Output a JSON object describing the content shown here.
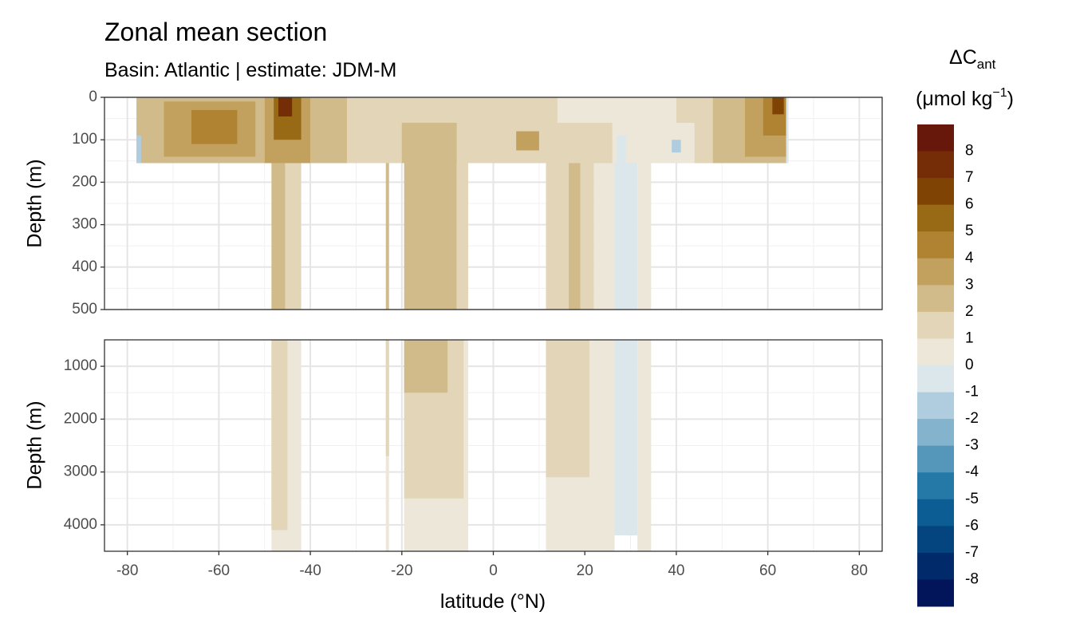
{
  "title": "Zonal mean section",
  "subtitle": "Basin: Atlantic | estimate: JDM-M",
  "legend": {
    "title_main": "ΔC",
    "title_sub": "ant",
    "unit_open": "(μmol kg",
    "unit_sup": "−1",
    "unit_close": ")",
    "bins": [
      {
        "label": "8",
        "color": "#67180b"
      },
      {
        "label": "7",
        "color": "#742d06"
      },
      {
        "label": "6",
        "color": "#7f4303"
      },
      {
        "label": "5",
        "color": "#986a16"
      },
      {
        "label": "4",
        "color": "#b08332"
      },
      {
        "label": "3",
        "color": "#c2a05e"
      },
      {
        "label": "2",
        "color": "#d2bb8a"
      },
      {
        "label": "1",
        "color": "#e2d5b8"
      },
      {
        "label": "0",
        "color": "#ede7da"
      },
      {
        "label": "-1",
        "color": "#dce7ec"
      },
      {
        "label": "-2",
        "color": "#b0cde0"
      },
      {
        "label": "-3",
        "color": "#84b4cd"
      },
      {
        "label": "-4",
        "color": "#5597bb"
      },
      {
        "label": "-5",
        "color": "#2579a6"
      },
      {
        "label": "-6",
        "color": "#0b5d94"
      },
      {
        "label": "-7",
        "color": "#044580"
      },
      {
        "label": "-8",
        "color": "#012a6b"
      },
      {
        "label": "",
        "color": "#02145a"
      }
    ]
  },
  "chart_data": {
    "type": "heatmap",
    "xlabel": "latitude (°N)",
    "ylabel": "Depth (m)",
    "xlim": [
      -85,
      85
    ],
    "x_ticks": [
      -80,
      -60,
      -40,
      -20,
      0,
      20,
      40,
      60,
      80
    ],
    "panels": [
      {
        "name": "upper",
        "ylim": [
          0,
          500
        ],
        "y_ticks": [
          0,
          100,
          200,
          300,
          400,
          500
        ],
        "bands": [
          {
            "lat": [
              -48.5,
              -45.5
            ],
            "depth": [
              150,
              500
            ],
            "value": 2.5
          },
          {
            "lat": [
              -45.5,
              -42
            ],
            "depth": [
              150,
              500
            ],
            "value": 1.5
          },
          {
            "lat": [
              -23.5,
              -22.8
            ],
            "depth": [
              150,
              500
            ],
            "value": 2.5
          },
          {
            "lat": [
              -19.5,
              -8
            ],
            "depth": [
              150,
              500
            ],
            "value": 2.5
          },
          {
            "lat": [
              -8,
              -5.5
            ],
            "depth": [
              150,
              500
            ],
            "value": 1.5
          },
          {
            "lat": [
              11.5,
              22
            ],
            "depth": [
              150,
              500
            ],
            "value": 1.5
          },
          {
            "lat": [
              16.5,
              19
            ],
            "depth": [
              150,
              500
            ],
            "value": 2.5
          },
          {
            "lat": [
              22,
              26.5
            ],
            "depth": [
              150,
              500
            ],
            "value": 0.5
          },
          {
            "lat": [
              26.5,
              31.5
            ],
            "depth": [
              150,
              500
            ],
            "value": -0.5
          },
          {
            "lat": [
              31.5,
              34.5
            ],
            "depth": [
              150,
              500
            ],
            "value": 0.5
          },
          {
            "lat": [
              -78,
              64.5
            ],
            "depth": [
              0,
              155
            ],
            "value": 1.5
          },
          {
            "lat": [
              -78,
              -50
            ],
            "depth": [
              0,
              155
            ],
            "value": 2.5
          },
          {
            "lat": [
              -72,
              -52
            ],
            "depth": [
              10,
              140
            ],
            "value": 3.5
          },
          {
            "lat": [
              -66,
              -56
            ],
            "depth": [
              30,
              110
            ],
            "value": 4.5
          },
          {
            "lat": [
              -50,
              -40
            ],
            "depth": [
              0,
              155
            ],
            "value": 3.5
          },
          {
            "lat": [
              -48,
              -42
            ],
            "depth": [
              0,
              100
            ],
            "value": 5.5
          },
          {
            "lat": [
              -47,
              -44
            ],
            "depth": [
              0,
              45
            ],
            "value": 7.5
          },
          {
            "lat": [
              -40,
              -32
            ],
            "depth": [
              0,
              155
            ],
            "value": 2.5
          },
          {
            "lat": [
              -20,
              -8
            ],
            "depth": [
              60,
              155
            ],
            "value": 2.5
          },
          {
            "lat": [
              0,
              16
            ],
            "depth": [
              0,
              155
            ],
            "value": 1.5
          },
          {
            "lat": [
              5,
              10
            ],
            "depth": [
              80,
              125
            ],
            "value": 3.5
          },
          {
            "lat": [
              14,
              40
            ],
            "depth": [
              0,
              60
            ],
            "value": 0.5
          },
          {
            "lat": [
              26,
              44
            ],
            "depth": [
              60,
              155
            ],
            "value": 0.5
          },
          {
            "lat": [
              27,
              29
            ],
            "depth": [
              90,
              155
            ],
            "value": -0.5
          },
          {
            "lat": [
              39,
              41
            ],
            "depth": [
              100,
              130
            ],
            "value": -1.5
          },
          {
            "lat": [
              44,
              64.5
            ],
            "depth": [
              0,
              155
            ],
            "value": 1.5
          },
          {
            "lat": [
              48,
              64.5
            ],
            "depth": [
              0,
              155
            ],
            "value": 2.5
          },
          {
            "lat": [
              55,
              64
            ],
            "depth": [
              0,
              140
            ],
            "value": 3.5
          },
          {
            "lat": [
              59,
              64
            ],
            "depth": [
              0,
              90
            ],
            "value": 4.5
          },
          {
            "lat": [
              61,
              63.5
            ],
            "depth": [
              0,
              40
            ],
            "value": 6.5
          },
          {
            "lat": [
              64,
              64.5
            ],
            "depth": [
              0,
              155
            ],
            "value": -0.5
          },
          {
            "lat": [
              -78,
              -77
            ],
            "depth": [
              90,
              155
            ],
            "value": -1.5
          }
        ]
      },
      {
        "name": "lower",
        "ylim": [
          500,
          4500
        ],
        "y_ticks": [
          1000,
          2000,
          3000,
          4000
        ],
        "bands": [
          {
            "lat": [
              -48.5,
              -42
            ],
            "depth": [
              500,
              4500
            ],
            "value": 0.5
          },
          {
            "lat": [
              -48.5,
              -45
            ],
            "depth": [
              500,
              4100
            ],
            "value": 1.5
          },
          {
            "lat": [
              -23.5,
              -22.8
            ],
            "depth": [
              500,
              4500
            ],
            "value": 0.5
          },
          {
            "lat": [
              -23.5,
              -22.8
            ],
            "depth": [
              500,
              2700
            ],
            "value": 1.5
          },
          {
            "lat": [
              -19.5,
              -5.5
            ],
            "depth": [
              500,
              4500
            ],
            "value": 0.5
          },
          {
            "lat": [
              -19.5,
              -6.5
            ],
            "depth": [
              500,
              3500
            ],
            "value": 1.5
          },
          {
            "lat": [
              -19.5,
              -10
            ],
            "depth": [
              500,
              1500
            ],
            "value": 2.5
          },
          {
            "lat": [
              11.5,
              26.5
            ],
            "depth": [
              500,
              4500
            ],
            "value": 0.5
          },
          {
            "lat": [
              11.5,
              21
            ],
            "depth": [
              500,
              3100
            ],
            "value": 1.5
          },
          {
            "lat": [
              26.5,
              31.5
            ],
            "depth": [
              500,
              4200
            ],
            "value": -0.5
          },
          {
            "lat": [
              31.5,
              34.5
            ],
            "depth": [
              500,
              4500
            ],
            "value": 0.5
          }
        ]
      }
    ]
  }
}
